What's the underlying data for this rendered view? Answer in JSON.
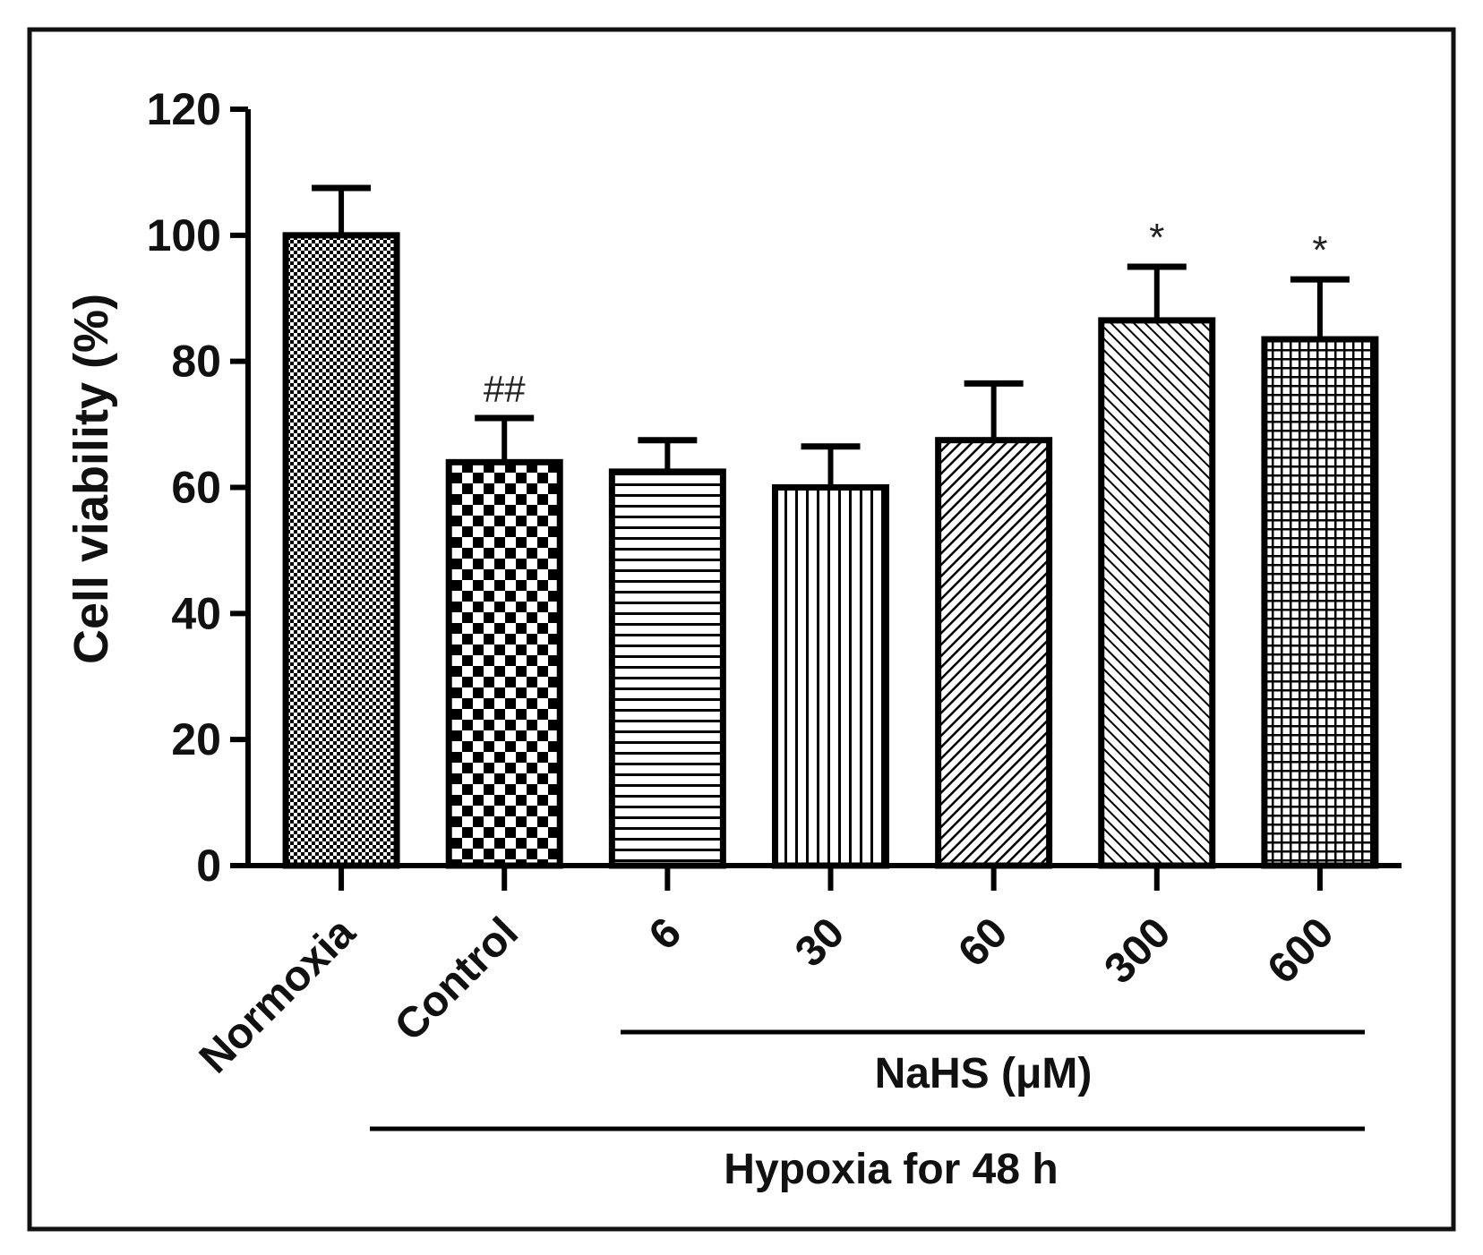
{
  "chart_data": {
    "type": "bar",
    "title": "",
    "xlabel": "",
    "ylabel": "Cell viability (%)",
    "ylim": [
      0,
      120
    ],
    "yticks": [
      "0",
      "20",
      "40",
      "60",
      "80",
      "100",
      "120"
    ],
    "categories": [
      "Normoxia",
      "Control",
      "6",
      "30",
      "60",
      "300",
      "600"
    ],
    "values": [
      100,
      64,
      62.5,
      60,
      67.5,
      86.5,
      83.5
    ],
    "errors": [
      7.5,
      7,
      5,
      6.5,
      9,
      8.5,
      9.5
    ],
    "patterns": [
      "fine-checker",
      "checker",
      "horizontal-lines",
      "vertical-lines",
      "diagonal-lines",
      "diagonal-lines-fine",
      "grid"
    ],
    "annotations": [
      "",
      "##",
      "",
      "",
      "",
      "*",
      "*"
    ],
    "group_labels": {
      "nahs": "NaHS (μM)",
      "hypoxia": "Hypoxia for 48 h"
    },
    "grid": false,
    "legend": "none"
  }
}
